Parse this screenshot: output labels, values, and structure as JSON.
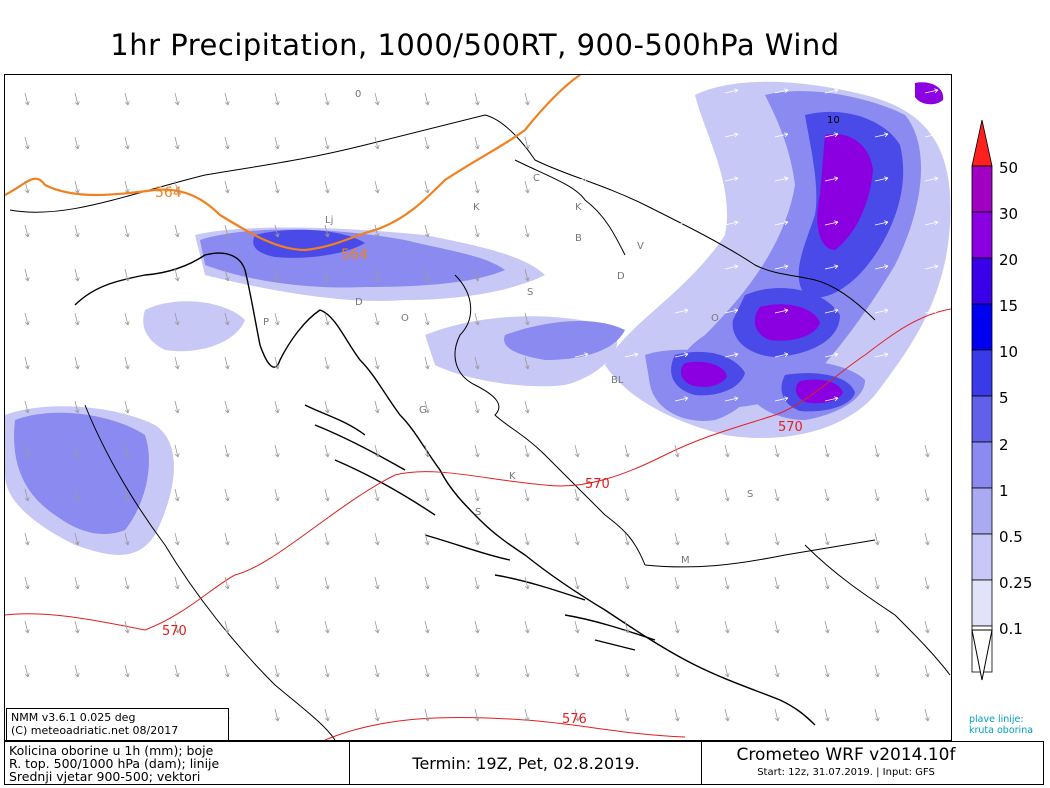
{
  "title": "1hr Precipitation, 1000/500RT, 900-500hPa Wind",
  "scale": {
    "labels": [
      "50",
      "30",
      "20",
      "15",
      "10",
      "5",
      "2",
      "1",
      "0.5",
      "0.25",
      "0.1"
    ],
    "colors": [
      "#a000c0",
      "#8a00e0",
      "#3a00e8",
      "#0000f0",
      "#3a3ae8",
      "#6060e8",
      "#8a8af0",
      "#aaaaf2",
      "#c8c8f6",
      "#e2e2fa",
      "#ffffff"
    ],
    "top_arrow_color": "#ff2020"
  },
  "contours": {
    "orange_labels": [
      "564",
      "564"
    ],
    "red_labels": [
      "570",
      "570",
      "570",
      "576"
    ],
    "map_labels": [
      "0",
      "10"
    ]
  },
  "place_letters": [
    "C",
    "K",
    "K",
    "V",
    "B",
    "Lj",
    "D",
    "S",
    "P",
    "O",
    "D",
    "G",
    "BL",
    "S",
    "K",
    "S",
    "M",
    "O"
  ],
  "info": {
    "line1": "NMM v3.6.1 0.025 deg",
    "line2": "(C) meteoadriatic.net 08/2017"
  },
  "bottom": {
    "desc1": "Kolicina oborine u 1h (mm); boje",
    "desc2": "R. top. 500/1000 hPa (dam); linije",
    "desc3": "Srednji vjetar 900-500; vektori",
    "termin": "Termin: 19Z, Pet, 02.8.2019.",
    "model_name": "Crometeo WRF v2014.10f",
    "model_start": "Start: 12z, 31.07.2019. | Input: GFS"
  },
  "plave": {
    "line1": "plave linije:",
    "line2": "kruta oborina"
  }
}
